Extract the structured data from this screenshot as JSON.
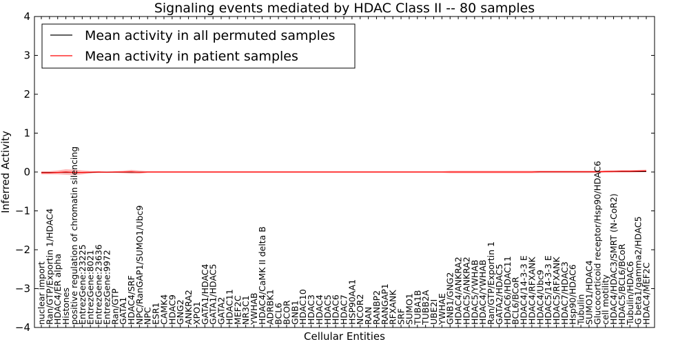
{
  "chart_data": {
    "type": "line",
    "title": "Signaling events mediated by HDAC Class II -- 80 samples",
    "xlabel": "Cellular Entities",
    "ylabel": "Inferred Activity",
    "ylim": [
      -4,
      4
    ],
    "yticks": [
      4,
      3,
      2,
      1,
      0,
      -1,
      -2,
      -3,
      -4
    ],
    "ytick_labels": [
      "4",
      "3",
      "2",
      "1",
      "0",
      "−1",
      "−2",
      "−3",
      "−4"
    ],
    "legend": {
      "placement": "top-left",
      "entries": [
        {
          "label": "Mean activity in all permuted samples",
          "color": "#000000"
        },
        {
          "label": "Mean activity in patient samples",
          "color": "#ff0000"
        }
      ]
    },
    "categories": [
      "nuclear import",
      "Ran/GTP/Exportin 1/HDAC4",
      "HDAC4/ER alpha",
      "Histones",
      "positive regulation of chromatin silencing",
      "EntrezGene:23225",
      "EntrezGene:8021",
      "EntrezGene:23636",
      "EntrezGene:9972",
      "Ran/GTP",
      "GATA1",
      "HDAC4/SRF",
      "NPC/RanGAP1/SUMO1/Ubc9",
      "NPC",
      "ESR1",
      "CAMK4",
      "HDAC9",
      "GNG2",
      "ANKRA2",
      "XPO1",
      "GATA1/HDAC4",
      "GATA1/HDAC5",
      "GATA2",
      "HDAC11",
      "MEF2C",
      "NR3C1",
      "YWHAB",
      "HDAC4/CaMK II delta B",
      "ADRBK1",
      "BCL6",
      "BCOR",
      "GNB1",
      "HDAC10",
      "HDAC3",
      "HDAC4",
      "HDAC5",
      "HDAC6",
      "HDAC7",
      "HSP90AA1",
      "NCOR2",
      "RAN",
      "RANBP2",
      "RANGAP1",
      "RFXANK",
      "SRF",
      "SUMO1",
      "TUBA1B",
      "TUBB2A",
      "UBE2I",
      "YWHAE",
      "GNB1/GNG2",
      "HDAC4/ANKRA2",
      "HDAC5/ANKRA2",
      "HDAC5/YWHAB",
      "HDAC4/YWHAB",
      "Ran/GTP/Exportin 1",
      "GATA2/HDAC5",
      "HDAC6/HDAC11",
      "BCL6/BCoR",
      "HDAC4/14-3-3 E",
      "HDAC4/RFXANK",
      "HDAC4/Ubc9",
      "HDAC5/14-3-3 E",
      "HDAC5/RFXANK",
      "HDAC7/HDAC3",
      "Hsp90/HDAC6",
      "Tubulin",
      "SUMO1/HDAC4",
      "Glucocorticoid receptor/Hsp90/HDAC6",
      "cell motility",
      "HDAC4/HDAC3/SMRT (N-CoR2)",
      "HDAC5/BCL6/BCoR",
      "Tubulin/HDAC6",
      "G beta1/gamma2/HDAC5",
      "HDAC4/MEF2C"
    ],
    "series": [
      {
        "name": "Mean activity in all permuted samples",
        "color": "#000000",
        "values": [
          -0.01,
          -0.01,
          -0.01,
          -0.01,
          -0.01,
          -0.01,
          -0.01,
          -0.005,
          -0.005,
          -0.005,
          -0.005,
          -0.005,
          -0.005,
          0,
          0,
          0,
          0,
          0,
          0,
          0,
          0,
          0,
          0,
          0,
          0,
          0,
          0,
          0,
          0,
          0,
          0,
          0,
          0,
          0,
          0,
          0,
          0,
          0,
          0,
          0,
          0,
          0,
          0,
          0,
          0,
          0,
          0,
          0,
          0,
          0,
          0,
          0,
          0,
          0,
          0,
          0,
          0,
          0,
          0,
          0,
          0,
          0.005,
          0.005,
          0.005,
          0.005,
          0.005,
          0.005,
          0.005,
          0.005,
          0.01,
          0.01,
          0.01,
          0.01,
          0.01,
          0.01
        ]
      },
      {
        "name": "Mean activity in patient samples",
        "color": "#ff0000",
        "values": [
          -0.02,
          -0.02,
          -0.01,
          0,
          -0.01,
          -0.01,
          -0.005,
          0,
          -0.005,
          0,
          0,
          0.005,
          -0.005,
          0,
          0,
          0,
          0,
          0,
          0,
          0,
          0,
          0,
          0,
          0,
          0,
          0,
          0,
          0,
          0,
          0,
          0,
          0,
          0,
          0,
          0,
          0,
          0,
          0,
          0,
          0,
          0,
          0,
          0,
          0,
          0,
          0,
          0,
          0,
          0,
          0,
          0,
          0,
          0,
          0,
          0,
          0,
          0,
          0,
          0,
          0,
          0,
          0.005,
          0.005,
          0.005,
          0.005,
          0.005,
          0.005,
          0.005,
          0.005,
          0.01,
          0.015,
          0.02,
          0.02,
          0.025,
          0.03
        ],
        "band_halfwidth": [
          0.04,
          0.04,
          0.05,
          0.07,
          0.07,
          0.05,
          0.03,
          0.02,
          0.02,
          0.02,
          0.03,
          0.05,
          0.04,
          0.02,
          0.02,
          0.02,
          0.02,
          0.02,
          0.02,
          0.02,
          0.02,
          0.02,
          0.02,
          0.02,
          0.02,
          0.02,
          0.02,
          0.02,
          0.02,
          0.02,
          0.02,
          0.02,
          0.02,
          0.02,
          0.02,
          0.02,
          0.02,
          0.02,
          0.02,
          0.02,
          0.02,
          0.02,
          0.02,
          0.02,
          0.02,
          0.02,
          0.02,
          0.02,
          0.02,
          0.02,
          0.03,
          0.03,
          0.03,
          0.03,
          0.03,
          0.03,
          0.03,
          0.03,
          0.03,
          0.03,
          0.03,
          0.03,
          0.03,
          0.03,
          0.03,
          0.03,
          0.03,
          0.03,
          0.03,
          0.03,
          0.03,
          0.03,
          0.03,
          0.03,
          0.03
        ]
      }
    ],
    "grid": false
  }
}
